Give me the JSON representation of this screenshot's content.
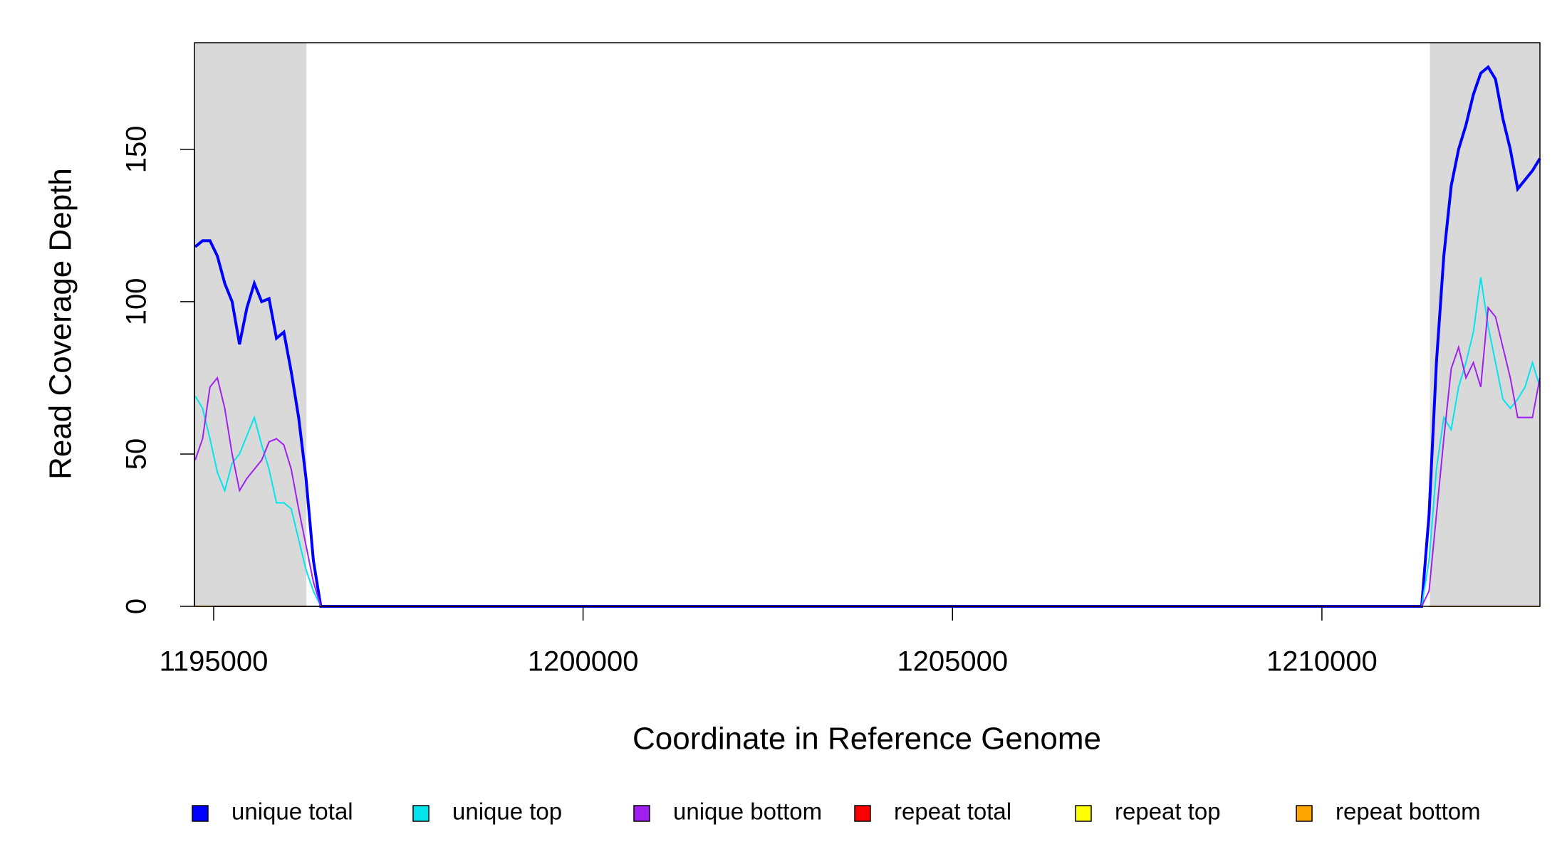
{
  "chart_data": {
    "type": "line",
    "x_label": "Coordinate in Reference Genome",
    "y_label": "Read Coverage Depth",
    "xlim": [
      1194740,
      1212951
    ],
    "ylim": [
      0,
      185
    ],
    "xticks": [
      1195000,
      1200000,
      1205000,
      1210000
    ],
    "yticks": [
      0,
      50,
      100,
      150
    ],
    "shaded": [
      [
        1194740,
        1196256
      ],
      [
        1211462,
        1212951
      ]
    ],
    "shade_color": "#d9d9d9",
    "x": [
      1194750,
      1194850,
      1194950,
      1195050,
      1195150,
      1195250,
      1195350,
      1195450,
      1195550,
      1195650,
      1195750,
      1195850,
      1195950,
      1196050,
      1196150,
      1196250,
      1196350,
      1196450,
      1211250,
      1211350,
      1211450,
      1211550,
      1211650,
      1211750,
      1211850,
      1211950,
      1212050,
      1212150,
      1212250,
      1212350,
      1212450,
      1212550,
      1212650,
      1212750,
      1212850,
      1212950
    ],
    "series": [
      {
        "name": "unique total",
        "color": "#0000ff",
        "width": 4,
        "values": [
          118,
          120,
          120,
          115,
          106,
          100,
          86,
          98,
          106,
          100,
          101,
          88,
          90,
          77,
          62,
          42,
          15,
          0,
          0,
          0,
          30,
          80,
          115,
          138,
          150,
          158,
          168,
          175,
          177,
          173,
          160,
          150,
          137,
          140,
          143,
          147
        ]
      },
      {
        "name": "unique top",
        "color": "#00e5ee",
        "width": 2,
        "values": [
          69,
          65,
          55,
          44,
          38,
          47,
          50,
          56,
          62,
          53,
          45,
          34,
          34,
          32,
          22,
          12,
          5,
          0,
          0,
          0,
          15,
          45,
          62,
          58,
          72,
          80,
          90,
          108,
          92,
          80,
          68,
          65,
          68,
          72,
          80,
          72
        ]
      },
      {
        "name": "unique bottom",
        "color": "#a020f0",
        "width": 2,
        "values": [
          48,
          55,
          72,
          75,
          65,
          50,
          38,
          42,
          45,
          48,
          54,
          55,
          53,
          45,
          32,
          20,
          8,
          0,
          0,
          0,
          5,
          30,
          55,
          78,
          85,
          75,
          80,
          72,
          98,
          95,
          85,
          75,
          62,
          62,
          62,
          75
        ]
      },
      {
        "name": "repeat total",
        "color": "#ff0000",
        "width": 2,
        "values": [
          0,
          0,
          0,
          0,
          0,
          0,
          0,
          0,
          0,
          0,
          0,
          0,
          0,
          0,
          0,
          0,
          null,
          null,
          null,
          null,
          0,
          0,
          0,
          0,
          0,
          0,
          0,
          0,
          0,
          0,
          0,
          0,
          0,
          0,
          0,
          0
        ]
      },
      {
        "name": "repeat top",
        "color": "#ffff00",
        "width": 2,
        "values": [
          0,
          0,
          0,
          0,
          0,
          0,
          0,
          0,
          0,
          0,
          0,
          0,
          0,
          0,
          0,
          0,
          null,
          null,
          null,
          null,
          0,
          0,
          0,
          0,
          0,
          0,
          0,
          0,
          0,
          0,
          0,
          0,
          0,
          0,
          0,
          0
        ]
      },
      {
        "name": "repeat bottom",
        "color": "#ffa500",
        "width": 2,
        "values": [
          0,
          0,
          0,
          0,
          0,
          0,
          0,
          0,
          0,
          0,
          0,
          0,
          0,
          0,
          0,
          0,
          null,
          null,
          null,
          null,
          0,
          0,
          0,
          0,
          0,
          0,
          0,
          0,
          0,
          0,
          0,
          0,
          0,
          0,
          0,
          0
        ]
      }
    ]
  }
}
